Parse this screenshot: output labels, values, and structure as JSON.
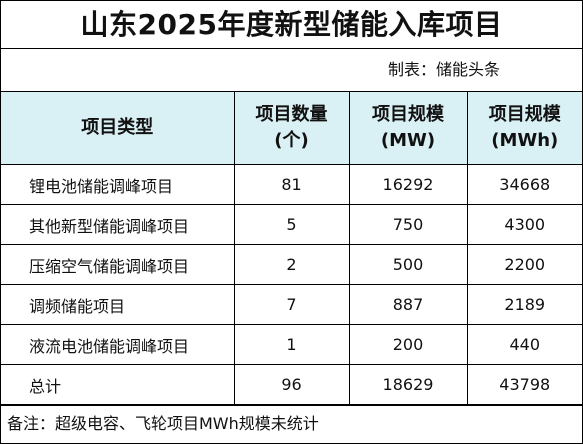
{
  "title": "山东2025年度新型储能入库项目",
  "maker": "制表：储能头条",
  "headers": {
    "type": "项目类型",
    "count_line1": "项目数量",
    "count_line2": "(个)",
    "mw_line1": "项目规模",
    "mw_line2": "(MW)",
    "mwh_line1": "项目规模",
    "mwh_line2": "(MWh)"
  },
  "rows": [
    {
      "type": "锂电池储能调峰项目",
      "count": "81",
      "mw": "16292",
      "mwh": "34668"
    },
    {
      "type": "其他新型储能调峰项目",
      "count": "5",
      "mw": "750",
      "mwh": "4300"
    },
    {
      "type": "压缩空气储能调峰项目",
      "count": "2",
      "mw": "500",
      "mwh": "2200"
    },
    {
      "type": "调频储能项目",
      "count": "7",
      "mw": "887",
      "mwh": "2189"
    },
    {
      "type": "液流电池储能调峰项目",
      "count": "1",
      "mw": "200",
      "mwh": "440"
    }
  ],
  "total": {
    "type": "总计",
    "count": "96",
    "mw": "18629",
    "mwh": "43798"
  },
  "note": "备注：超级电容、飞轮项目MWh规模未统计"
}
